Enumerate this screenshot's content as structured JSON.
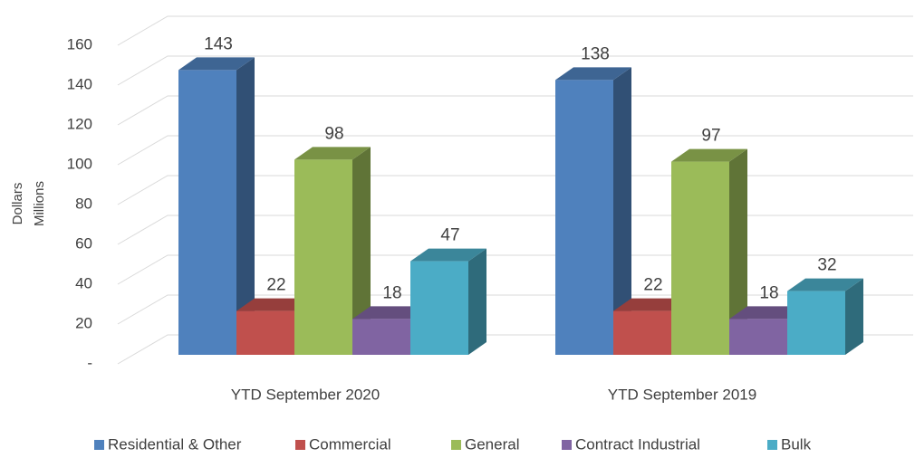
{
  "chart_data": {
    "type": "bar3d",
    "ylabel": [
      "Dollars",
      "Millions"
    ],
    "categories": [
      "YTD September 2020",
      "YTD September 2019"
    ],
    "series": [
      {
        "name": "Residential & Other",
        "color": "#4f81bd",
        "values": [
          143,
          138
        ]
      },
      {
        "name": "Commercial",
        "color": "#c0504d",
        "values": [
          22,
          22
        ]
      },
      {
        "name": "General",
        "color": "#9bbb59",
        "values": [
          98,
          97
        ]
      },
      {
        "name": "Contract Industrial",
        "color": "#8064a2",
        "values": [
          18,
          18
        ]
      },
      {
        "name": "Bulk",
        "color": "#4bacc6",
        "values": [
          47,
          32
        ]
      }
    ],
    "ylim": [
      0,
      160
    ],
    "yticks": [
      {
        "value": 0,
        "label": "-"
      },
      20,
      40,
      60,
      80,
      100,
      120,
      140,
      160
    ],
    "grid": true,
    "legend": "bottom"
  }
}
